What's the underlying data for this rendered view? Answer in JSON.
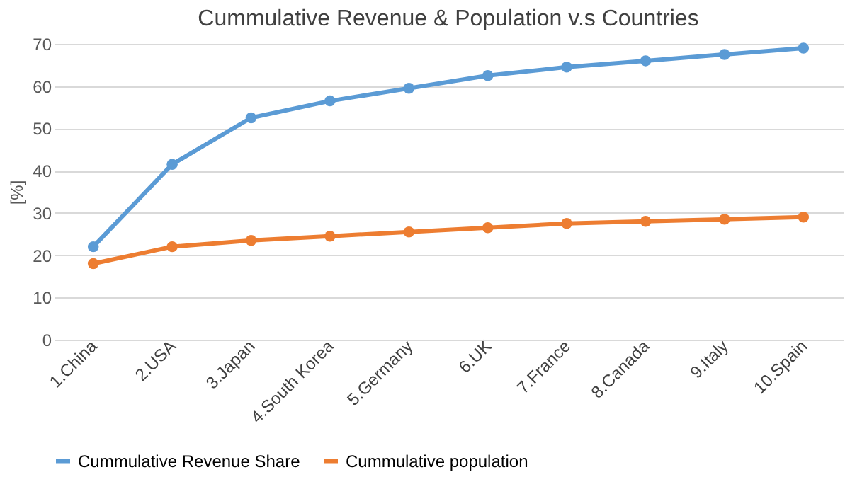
{
  "chart_data": {
    "type": "line",
    "title": "Cummulative Revenue & Population v.s Countries",
    "ylabel": "[%]",
    "categories": [
      "1.China",
      "2.USA",
      "3.Japan",
      "4.South Korea",
      "5.Germany",
      "6.UK",
      "7.France",
      "8.Canada",
      "9.Italy",
      "10.Spain"
    ],
    "series": [
      {
        "name": "Cummulative Revenue Share",
        "color": "#5b9bd5",
        "values": [
          22,
          41.5,
          52.5,
          56.5,
          59.5,
          62.5,
          64.5,
          66,
          67.5,
          69
        ]
      },
      {
        "name": "Cummulative population",
        "color": "#ed7d31",
        "values": [
          18,
          22,
          23.5,
          24.5,
          25.5,
          26.5,
          27.5,
          28,
          28.5,
          29
        ]
      }
    ],
    "ylim": [
      0,
      70
    ],
    "yticks": [
      0,
      10,
      20,
      30,
      40,
      50,
      60,
      70
    ],
    "grid": "y",
    "legend": "bottom",
    "marker": "circle",
    "line_style": "solid"
  }
}
